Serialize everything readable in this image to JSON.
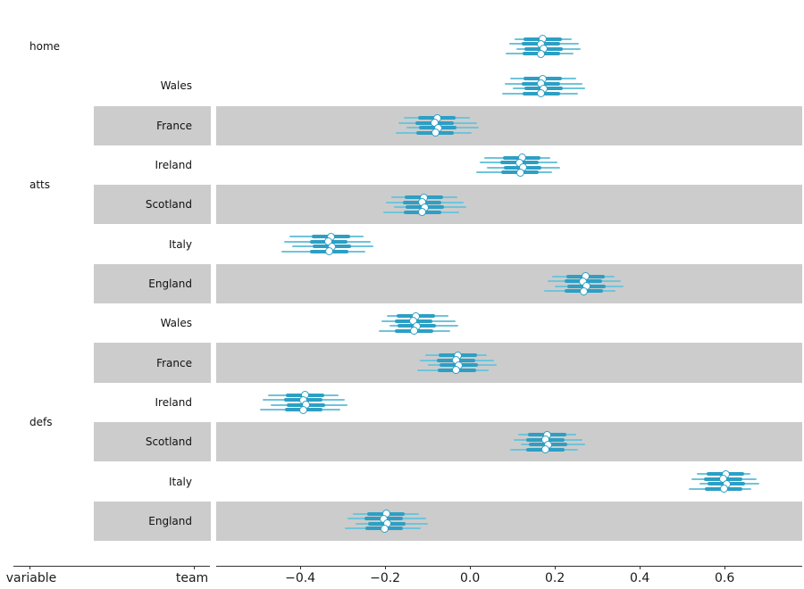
{
  "figure": {
    "background": "#ffffff"
  },
  "colors": {
    "band": "#cccccc",
    "hdi_line": "#6fc4da",
    "quartile_line": "#2d9fc4",
    "dot_fill": "#ffffff",
    "dot_ring": "#2d9fc4",
    "axis": "#333333",
    "text": "#111111"
  },
  "chart_data": {
    "type": "forest",
    "title": "",
    "column_titles": [
      "variable",
      "team"
    ],
    "n_chains": 4,
    "chain_format": [
      "median",
      "q_lo",
      "q_hi",
      "hdi_lo",
      "hdi_hi"
    ],
    "x_axis": {
      "xlim": [
        -0.598,
        0.783
      ],
      "ticks": [
        -0.4,
        -0.2,
        0.0,
        0.2,
        0.4,
        0.6
      ],
      "tick_labels": [
        "−0.4",
        "−0.2",
        "0.0",
        "0.2",
        "0.4",
        "0.6"
      ]
    },
    "rows": [
      {
        "variable": "home",
        "team": "",
        "shaded": false,
        "chains": [
          [
            0.172,
            0.127,
            0.217,
            0.104,
            0.24
          ],
          [
            0.167,
            0.122,
            0.212,
            0.092,
            0.256
          ],
          [
            0.174,
            0.129,
            0.219,
            0.11,
            0.262
          ],
          [
            0.168,
            0.123,
            0.213,
            0.085,
            0.244
          ]
        ]
      },
      {
        "variable": "atts",
        "team": "Wales",
        "shaded": false,
        "chains": [
          [
            0.172,
            0.127,
            0.217,
            0.094,
            0.25
          ],
          [
            0.167,
            0.122,
            0.212,
            0.082,
            0.266
          ],
          [
            0.174,
            0.129,
            0.219,
            0.1,
            0.272
          ],
          [
            0.168,
            0.123,
            0.213,
            0.075,
            0.254
          ]
        ]
      },
      {
        "variable": "atts",
        "team": "France",
        "shaded": true,
        "chains": [
          [
            -0.078,
            -0.123,
            -0.033,
            -0.156,
            0.0
          ],
          [
            -0.083,
            -0.128,
            -0.038,
            -0.168,
            0.016
          ],
          [
            -0.076,
            -0.121,
            -0.031,
            -0.15,
            0.022
          ],
          [
            -0.082,
            -0.127,
            -0.037,
            -0.175,
            0.004
          ]
        ]
      },
      {
        "variable": "atts",
        "team": "Ireland",
        "shaded": false,
        "chains": [
          [
            0.122,
            0.077,
            0.167,
            0.034,
            0.19
          ],
          [
            0.117,
            0.072,
            0.162,
            0.022,
            0.206
          ],
          [
            0.124,
            0.079,
            0.169,
            0.04,
            0.212
          ],
          [
            0.118,
            0.073,
            0.163,
            0.015,
            0.194
          ]
        ]
      },
      {
        "variable": "atts",
        "team": "Scotland",
        "shaded": true,
        "chains": [
          [
            -0.108,
            -0.153,
            -0.063,
            -0.186,
            -0.03
          ],
          [
            -0.113,
            -0.158,
            -0.068,
            -0.198,
            -0.014
          ],
          [
            -0.106,
            -0.151,
            -0.061,
            -0.18,
            -0.008
          ],
          [
            -0.112,
            -0.157,
            -0.067,
            -0.205,
            -0.026
          ]
        ]
      },
      {
        "variable": "atts",
        "team": "Italy",
        "shaded": false,
        "chains": [
          [
            -0.328,
            -0.373,
            -0.283,
            -0.426,
            -0.25
          ],
          [
            -0.333,
            -0.378,
            -0.288,
            -0.438,
            -0.234
          ],
          [
            -0.326,
            -0.371,
            -0.281,
            -0.42,
            -0.228
          ],
          [
            -0.332,
            -0.377,
            -0.287,
            -0.445,
            -0.246
          ]
        ]
      },
      {
        "variable": "atts",
        "team": "England",
        "shaded": true,
        "chains": [
          [
            0.272,
            0.227,
            0.317,
            0.194,
            0.34
          ],
          [
            0.267,
            0.222,
            0.312,
            0.182,
            0.356
          ],
          [
            0.274,
            0.229,
            0.319,
            0.2,
            0.362
          ],
          [
            0.268,
            0.223,
            0.313,
            0.175,
            0.344
          ]
        ]
      },
      {
        "variable": "defs",
        "team": "Wales",
        "shaded": false,
        "chains": [
          [
            -0.128,
            -0.173,
            -0.083,
            -0.196,
            -0.05
          ],
          [
            -0.133,
            -0.178,
            -0.088,
            -0.208,
            -0.034
          ],
          [
            -0.126,
            -0.171,
            -0.081,
            -0.19,
            -0.028
          ],
          [
            -0.132,
            -0.177,
            -0.087,
            -0.215,
            -0.046
          ]
        ]
      },
      {
        "variable": "defs",
        "team": "France",
        "shaded": true,
        "chains": [
          [
            -0.028,
            -0.073,
            0.017,
            -0.106,
            0.04
          ],
          [
            -0.033,
            -0.078,
            0.012,
            -0.118,
            0.056
          ],
          [
            -0.026,
            -0.071,
            0.019,
            -0.1,
            0.062
          ],
          [
            -0.032,
            -0.077,
            0.014,
            -0.125,
            0.044
          ]
        ]
      },
      {
        "variable": "defs",
        "team": "Ireland",
        "shaded": false,
        "chains": [
          [
            -0.388,
            -0.433,
            -0.343,
            -0.476,
            -0.31
          ],
          [
            -0.393,
            -0.438,
            -0.348,
            -0.488,
            -0.294
          ],
          [
            -0.386,
            -0.431,
            -0.341,
            -0.47,
            -0.288
          ],
          [
            -0.392,
            -0.437,
            -0.347,
            -0.495,
            -0.306
          ]
        ]
      },
      {
        "variable": "defs",
        "team": "Scotland",
        "shaded": true,
        "chains": [
          [
            0.182,
            0.137,
            0.227,
            0.114,
            0.25
          ],
          [
            0.177,
            0.132,
            0.222,
            0.102,
            0.266
          ],
          [
            0.184,
            0.139,
            0.229,
            0.12,
            0.272
          ],
          [
            0.178,
            0.133,
            0.223,
            0.095,
            0.254
          ]
        ]
      },
      {
        "variable": "defs",
        "team": "Italy",
        "shaded": false,
        "chains": [
          [
            0.602,
            0.557,
            0.647,
            0.534,
            0.66
          ],
          [
            0.597,
            0.552,
            0.642,
            0.522,
            0.676
          ],
          [
            0.604,
            0.559,
            0.649,
            0.54,
            0.682
          ],
          [
            0.598,
            0.553,
            0.643,
            0.515,
            0.664
          ]
        ]
      },
      {
        "variable": "defs",
        "team": "England",
        "shaded": true,
        "chains": [
          [
            -0.198,
            -0.243,
            -0.153,
            -0.276,
            -0.12
          ],
          [
            -0.203,
            -0.248,
            -0.158,
            -0.288,
            -0.104
          ],
          [
            -0.196,
            -0.241,
            -0.151,
            -0.27,
            -0.098
          ],
          [
            -0.202,
            -0.247,
            -0.157,
            -0.295,
            -0.116
          ]
        ]
      }
    ]
  }
}
